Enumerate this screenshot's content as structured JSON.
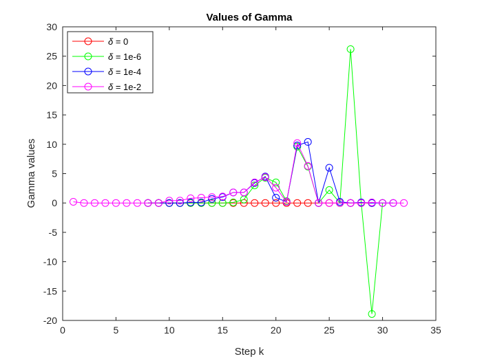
{
  "chart_data": {
    "type": "line",
    "title": "Values of Gamma",
    "xlabel": "Step k",
    "ylabel": "Gamma values",
    "xlim": [
      0,
      35
    ],
    "ylim": [
      -20,
      30
    ],
    "xticks": [
      0,
      5,
      10,
      15,
      20,
      25,
      30,
      35
    ],
    "yticks": [
      -20,
      -15,
      -10,
      -5,
      0,
      5,
      10,
      15,
      20,
      25,
      30
    ],
    "grid": false,
    "legend_position": "top-left",
    "series": [
      {
        "name": "δ = 0",
        "symbol": "δ",
        "label_rest": " = 0",
        "color": "#ff0000",
        "x": [
          8,
          9,
          10,
          11,
          12,
          13,
          14,
          15,
          16,
          17,
          18,
          19,
          20,
          21,
          22,
          23,
          24,
          25,
          26,
          27,
          28,
          29
        ],
        "y": [
          0,
          0,
          0,
          0,
          0,
          0,
          0,
          0,
          0,
          0,
          0,
          0,
          0,
          0,
          0,
          0,
          0,
          0,
          0,
          0,
          0,
          0
        ]
      },
      {
        "name": "δ = 1e-6",
        "symbol": "δ",
        "label_rest": " = 1e-6",
        "color": "#00ff00",
        "x": [
          8,
          9,
          10,
          11,
          12,
          13,
          14,
          15,
          16,
          17,
          18,
          19,
          20,
          21,
          22,
          23,
          24,
          25,
          26,
          27,
          28,
          29,
          30
        ],
        "y": [
          0,
          0,
          0,
          0,
          0,
          0,
          0,
          0,
          0.1,
          0.6,
          3.0,
          4.3,
          3.5,
          0.3,
          9.6,
          6.2,
          0,
          2.2,
          0,
          26.2,
          0,
          -18.9,
          0
        ]
      },
      {
        "name": "δ = 1e-4",
        "symbol": "δ",
        "label_rest": " = 1e-4",
        "color": "#0000ff",
        "x": [
          8,
          9,
          10,
          11,
          12,
          13,
          14,
          15,
          16,
          17,
          18,
          19,
          20,
          21,
          22,
          23,
          24,
          25,
          26,
          27,
          28,
          29,
          30,
          31
        ],
        "y": [
          0,
          0,
          0,
          0,
          0.1,
          0.1,
          0.7,
          1.0,
          1.8,
          1.8,
          3.4,
          4.5,
          0.9,
          0.2,
          9.8,
          10.4,
          0,
          6.0,
          0.2,
          0,
          0.1,
          0,
          0,
          0
        ]
      },
      {
        "name": "δ = 1e-2",
        "symbol": "δ",
        "label_rest": " = 1e-2",
        "color": "#ff00ff",
        "x": [
          1,
          2,
          3,
          4,
          5,
          6,
          7,
          8,
          9,
          10,
          11,
          12,
          13,
          14,
          15,
          16,
          17,
          18,
          19,
          20,
          21,
          22,
          23,
          24,
          25,
          26,
          27,
          28,
          29,
          30,
          31,
          32
        ],
        "y": [
          0.2,
          0,
          0,
          0,
          0,
          0,
          0,
          0,
          0,
          0.4,
          0.4,
          0.8,
          0.9,
          1.0,
          1.1,
          1.8,
          1.8,
          3.5,
          4.4,
          2.6,
          0.2,
          10.2,
          6.3,
          0,
          0,
          0,
          0,
          0,
          0.1,
          0,
          0,
          0
        ]
      }
    ]
  }
}
